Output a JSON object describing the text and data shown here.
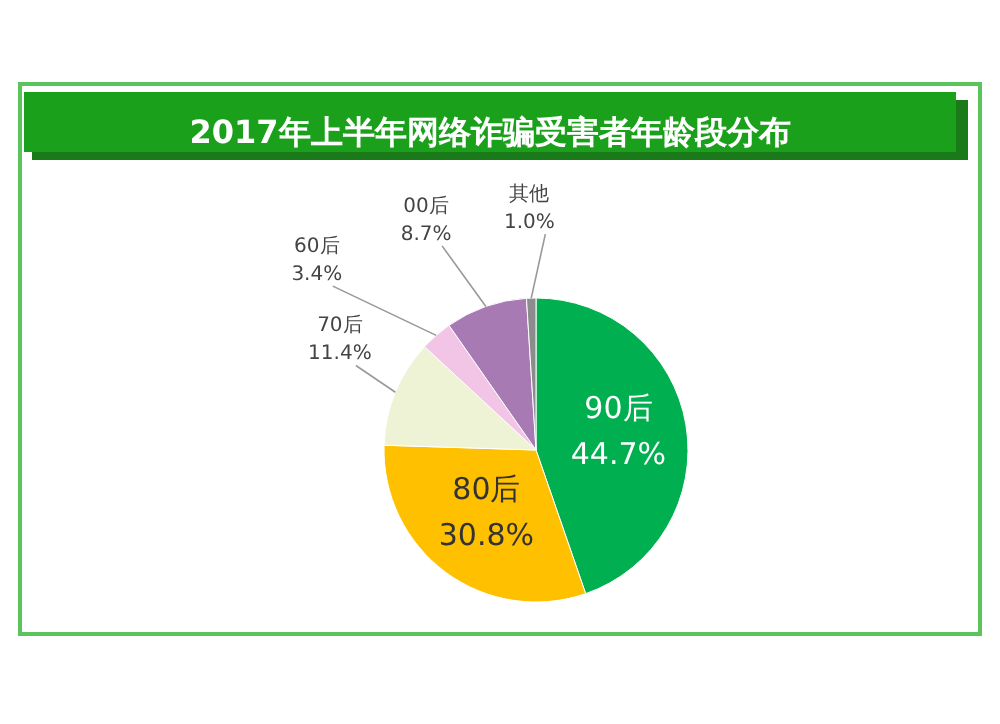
{
  "chart_data": {
    "type": "pie",
    "title": "2017年上半年网络诈骗受害者年龄段分布",
    "categories": [
      "90后",
      "80后",
      "70后",
      "60后",
      "00后",
      "其他"
    ],
    "values": [
      44.7,
      30.8,
      11.4,
      3.4,
      8.7,
      1.0
    ],
    "value_labels": [
      "44.7%",
      "30.8%",
      "11.4%",
      "3.4%",
      "8.7%",
      "1.0%"
    ],
    "colors": [
      "#00b050",
      "#ffc000",
      "#eef3d6",
      "#f2c4e6",
      "#a77ab4",
      "#8c8c8c"
    ]
  }
}
